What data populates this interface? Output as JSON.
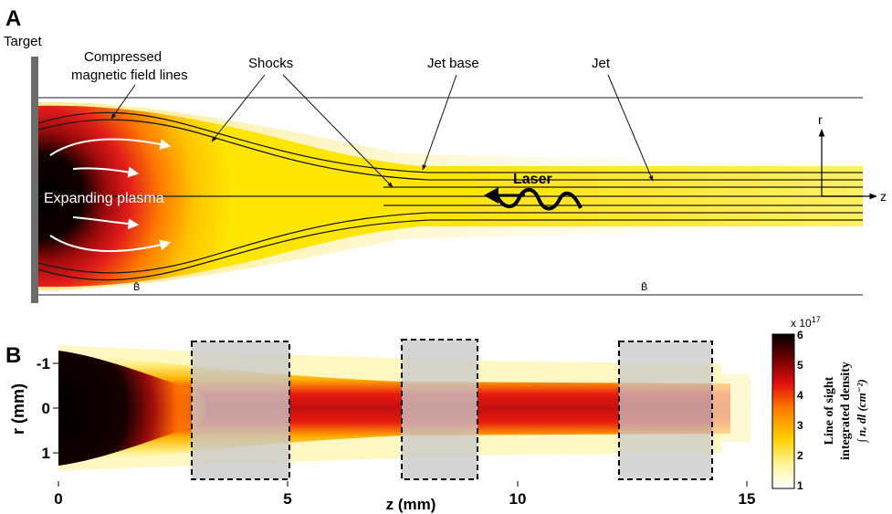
{
  "panel_a": {
    "panel_label": "A",
    "target_label": "Target",
    "labels": {
      "compressed_field_line1": "Compressed",
      "compressed_field_line2": "magnetic field lines",
      "shocks": "Shocks",
      "jet_base": "Jet base",
      "jet": "Jet",
      "expanding_plasma": "Expanding plasma",
      "laser": "Laser",
      "b_field_left": "B̄",
      "b_field_right": "B̄",
      "axis_r": "r",
      "axis_z": "z"
    }
  },
  "panel_b": {
    "panel_label": "B"
  },
  "chart_data": {
    "type": "heatmap",
    "xlabel": "z (mm)",
    "ylabel": "r (mm)",
    "xlim": [
      0,
      15
    ],
    "ylim": [
      -1.5,
      1.5
    ],
    "x_ticks": [
      "0",
      "5",
      "10",
      "15"
    ],
    "y_ticks": [
      "-1",
      "0",
      "1"
    ],
    "colorbar": {
      "label_line1": "Line of sight",
      "label_line2": "integrated density",
      "label_line3": "∫ nₑ dl (cm⁻²)",
      "exponent": "x 10",
      "exponent_power": "17",
      "ticks": [
        "1",
        "2",
        "3",
        "4",
        "5",
        "6"
      ],
      "range": [
        1,
        6
      ],
      "colors": [
        "#ffffff",
        "#fff6a0",
        "#ffd000",
        "#ff7a00",
        "#e01010",
        "#6a0000",
        "#000000"
      ]
    },
    "masked_regions_z": [
      [
        2.9,
        5.0
      ],
      [
        7.5,
        9.2
      ],
      [
        12.2,
        14.3
      ]
    ]
  },
  "colors": {
    "plasma_dark": "#000000",
    "plasma_red": "#e21b1b",
    "plasma_orange": "#ff8c00",
    "plasma_yellow": "#ffe100",
    "mask_gray": "#c8c8c8",
    "target_gray": "#6b6b6b"
  }
}
